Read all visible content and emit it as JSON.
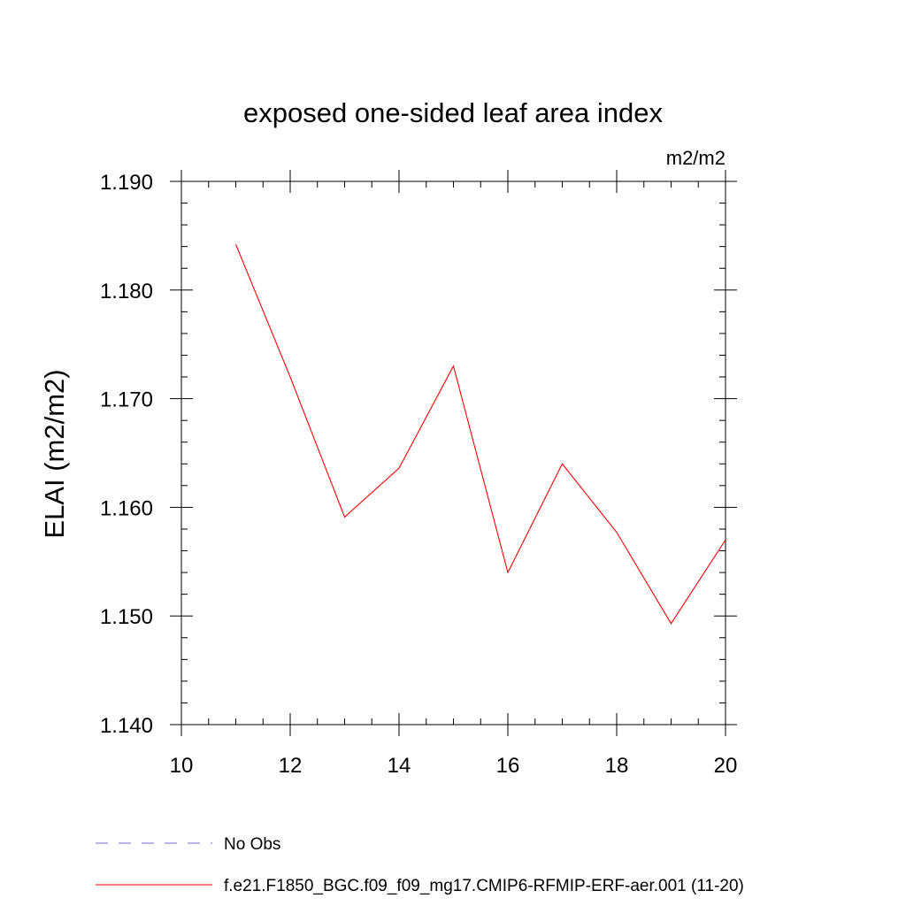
{
  "chart_data": {
    "type": "line",
    "title": "exposed one-sided leaf area index",
    "units_label": "m2/m2",
    "ylabel": "ELAI  (m2/m2)",
    "xlabel": "",
    "xlim": [
      10,
      20
    ],
    "ylim": [
      1.14,
      1.19
    ],
    "x_ticks": [
      10,
      12,
      14,
      16,
      18,
      20
    ],
    "x_tick_labels": [
      "10",
      "12",
      "14",
      "16",
      "18",
      "20"
    ],
    "y_ticks": [
      1.14,
      1.15,
      1.16,
      1.17,
      1.18,
      1.19
    ],
    "y_tick_labels": [
      "1.140",
      "1.150",
      "1.160",
      "1.170",
      "1.180",
      "1.190"
    ],
    "grid": false,
    "legend_position": "bottom",
    "series": [
      {
        "name": "No Obs",
        "color": "#7b68c8",
        "dash": "dashed",
        "x": [],
        "values": []
      },
      {
        "name": "f.e21.F1850_BGC.f09_f09_mg17.CMIP6-RFMIP-ERF-aer.001 (11-20)",
        "color": "#ff0000",
        "dash": "solid",
        "x": [
          11,
          12,
          13,
          14,
          15,
          16,
          17,
          18,
          19,
          20
        ],
        "values": [
          1.1842,
          1.172,
          1.1591,
          1.1636,
          1.173,
          1.154,
          1.164,
          1.1577,
          1.1493,
          1.157
        ]
      }
    ]
  }
}
